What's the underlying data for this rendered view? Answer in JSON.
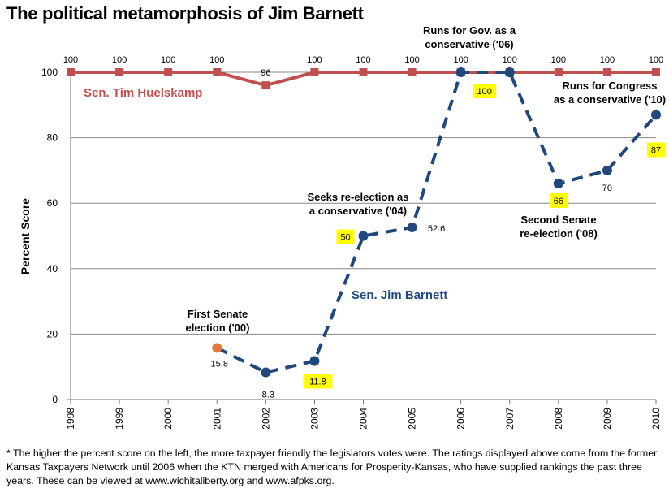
{
  "chart_data": {
    "type": "line",
    "title": "The political metamorphosis of  Jim Barnett",
    "ylabel": "Percent Score",
    "xlabel": "",
    "ylim": [
      0,
      100
    ],
    "yticks": [
      0,
      20,
      40,
      60,
      80,
      100
    ],
    "x": [
      "1998",
      "1999",
      "2000",
      "2001",
      "2002",
      "2003",
      "2004",
      "2005",
      "2006",
      "2007",
      "2008",
      "2009",
      "2010"
    ],
    "grid": true,
    "series": [
      {
        "name": "Sen. Tim Huelskamp",
        "color": "#c0504d",
        "style": "solid",
        "values": [
          100,
          100,
          100,
          100,
          96,
          100,
          100,
          100,
          100,
          100,
          100,
          100,
          100
        ],
        "labels": [
          "100",
          "100",
          "100",
          "100",
          "96",
          "100",
          "100",
          "100",
          "100",
          "100",
          "100",
          "100",
          "100"
        ]
      },
      {
        "name": "Sen. Jim Barnett",
        "color": "#1f497d",
        "style": "dashed",
        "values": [
          null,
          null,
          null,
          15.8,
          8.3,
          11.8,
          50,
          52.6,
          100,
          100,
          66,
          70,
          87
        ],
        "labels": [
          null,
          null,
          null,
          "15.8",
          "8.3",
          "11.8",
          "50",
          "52.6",
          "100",
          null,
          "66",
          "70",
          "87"
        ]
      }
    ],
    "annotations": [
      {
        "id": "first-senate",
        "lines": [
          "First Senate",
          "election ('00)"
        ]
      },
      {
        "id": "seeks-reelection",
        "lines": [
          "Seeks re-election as",
          "a conservative ('04)"
        ]
      },
      {
        "id": "runs-gov",
        "lines": [
          "Runs for Gov. as a",
          "conservative ('06)"
        ]
      },
      {
        "id": "second-senate",
        "lines": [
          "Second Senate",
          "re-election ('08)"
        ]
      },
      {
        "id": "runs-congress",
        "lines": [
          "Runs for Congress",
          "as a conservative ('10)"
        ]
      }
    ]
  },
  "footnote": "* The higher the percent score on the left, the more taxpayer friendly the legislators votes were. The ratings displayed above come from the former Kansas Taxpayers Network until 2006 when the KTN merged with Americans for Prosperity-Kansas, who have supplied rankings the past three years. These can be viewed at www.wichitaliberty.org and www.afpks.org."
}
